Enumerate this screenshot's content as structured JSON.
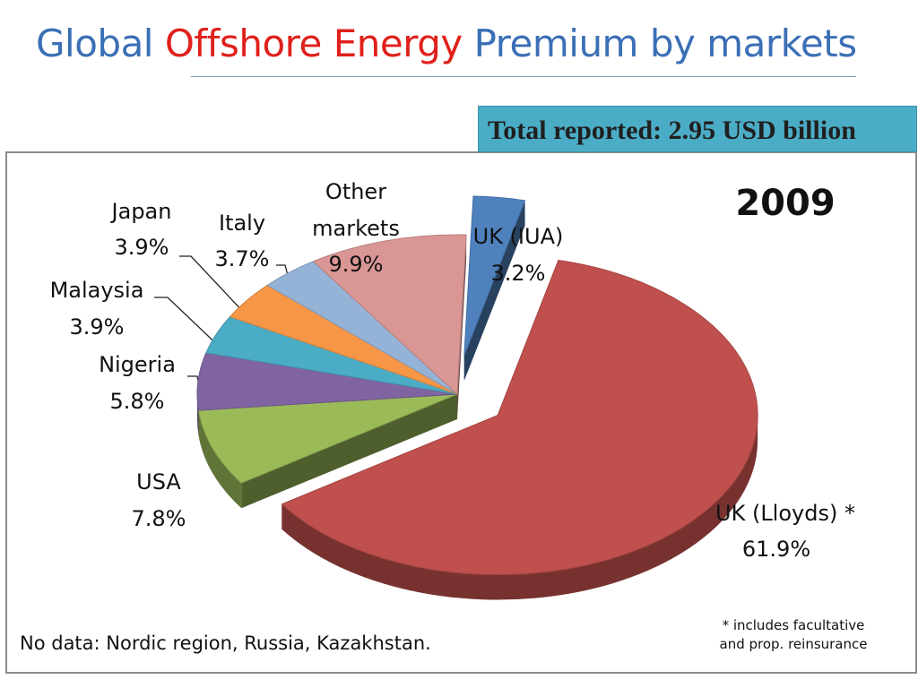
{
  "title": {
    "part1": "Global ",
    "part2": "Offshore Energy",
    "part3": " Premium by markets"
  },
  "total_reported": "Total reported: 2.95 USD billion",
  "colors": {
    "title": "#3b6fb6",
    "highlight": "#e0201b",
    "total_box": "#4bacc6"
  },
  "chart_data": {
    "type": "pie",
    "title": "2009",
    "unit": "%",
    "slices": [
      {
        "name": "UK (IUA)",
        "value": 3.2,
        "label": "3.2%",
        "color": "#4f81bd"
      },
      {
        "name": "UK (Lloyds) *",
        "value": 61.9,
        "label": "61.9%",
        "color": "#c0504d"
      },
      {
        "name": "USA",
        "value": 7.8,
        "label": "7.8%",
        "color": "#9bbb59"
      },
      {
        "name": "Nigeria",
        "value": 5.8,
        "label": "5.8%",
        "color": "#8064a2"
      },
      {
        "name": "Malaysia",
        "value": 3.9,
        "label": "3.9%",
        "color": "#4bacc6"
      },
      {
        "name": "Japan",
        "value": 3.9,
        "label": "3.9%",
        "color": "#f79646"
      },
      {
        "name": "Italy",
        "value": 3.7,
        "label": "3.7%",
        "color": "#95b3d7"
      },
      {
        "name": "Other markets",
        "value": 9.9,
        "label": "9.9%",
        "color": "#d99694"
      }
    ]
  },
  "notes": {
    "no_data": "No data: Nordic region, Russia, Kazakhstan.",
    "footnote_line1": "* includes facultative",
    "footnote_line2": "and prop. reinsurance"
  }
}
